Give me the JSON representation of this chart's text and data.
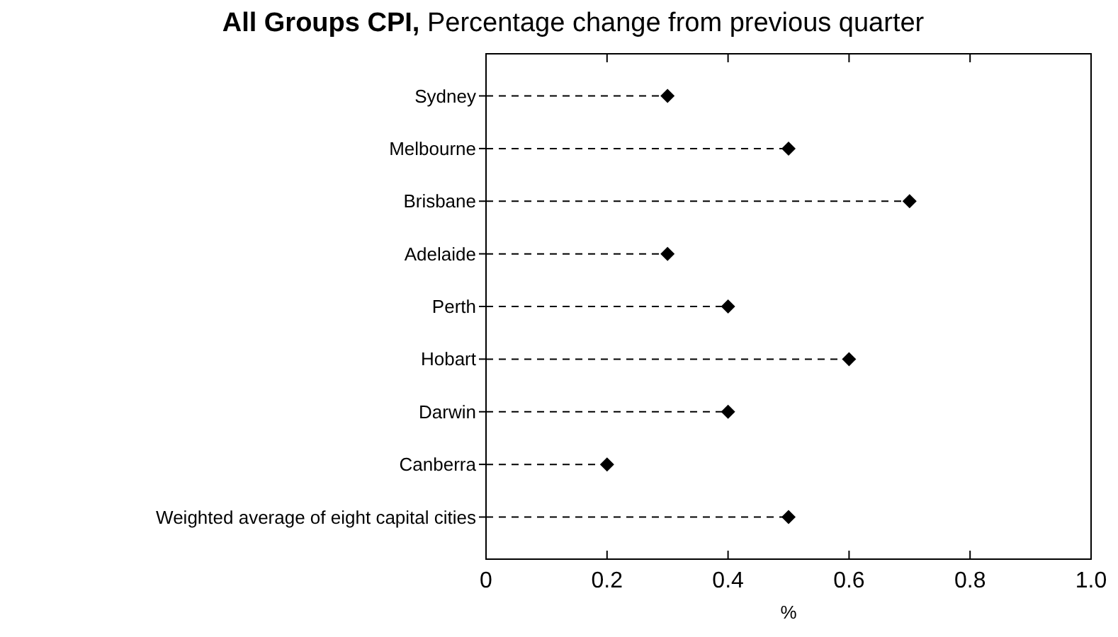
{
  "chart_data": {
    "type": "lollipop",
    "orientation": "horizontal",
    "title": "All Groups CPI, Percentage change from previous quarter",
    "xlabel": "%",
    "categories": [
      "Sydney",
      "Melbourne",
      "Brisbane",
      "Adelaide",
      "Perth",
      "Hobart",
      "Darwin",
      "Canberra",
      "Weighted average of eight capital cities"
    ],
    "values": [
      0.3,
      0.5,
      0.7,
      0.3,
      0.4,
      0.6,
      0.4,
      0.2,
      0.5
    ],
    "color": "#000000",
    "marker": "diamond",
    "line_style": "dashed",
    "grid": false,
    "xlim": [
      0,
      1
    ],
    "xticks": [
      0,
      0.2,
      0.4,
      0.6,
      0.8,
      {
        "value": 1,
        "label": "1.0"
      }
    ]
  }
}
